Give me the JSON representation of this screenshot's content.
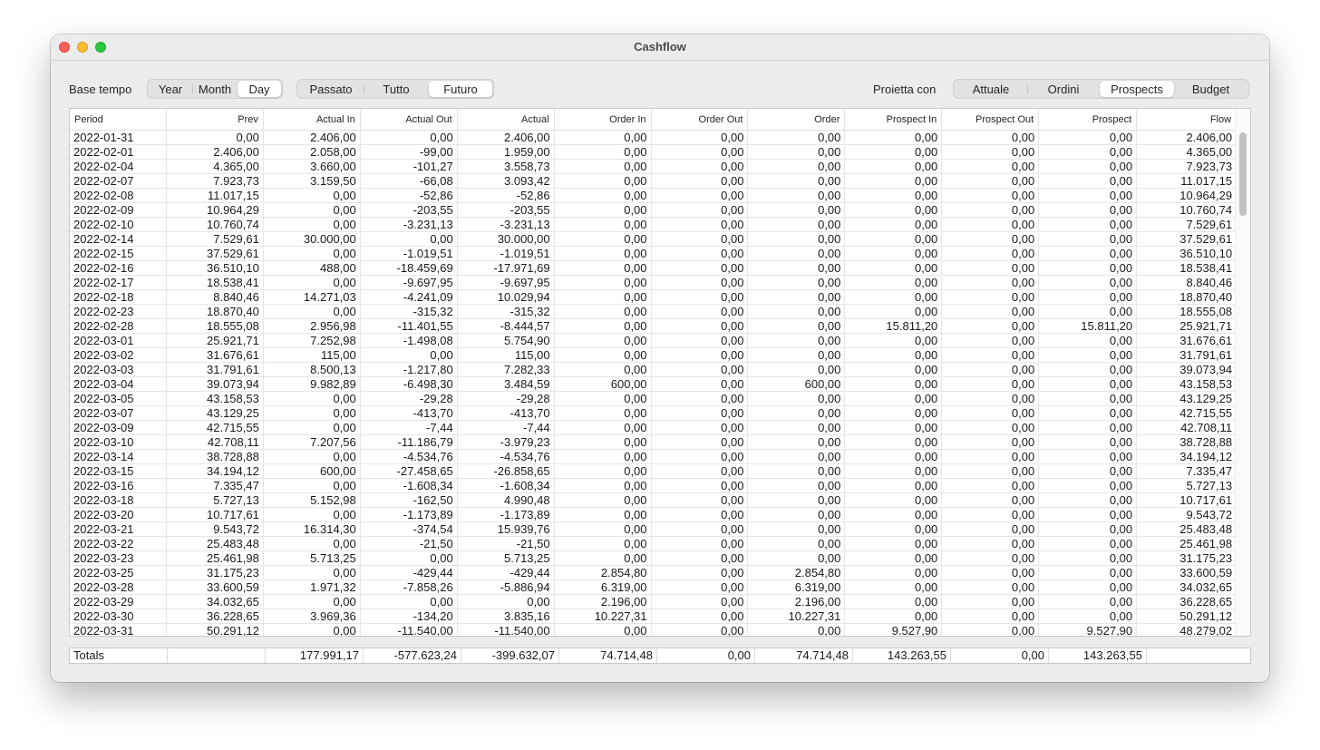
{
  "window": {
    "title": "Cashflow"
  },
  "toolbar": {
    "base_label": "Base tempo",
    "base_options": [
      "Year",
      "Month",
      "Day"
    ],
    "base_selected": 2,
    "period_options": [
      "Passato",
      "Tutto",
      "Futuro"
    ],
    "period_selected": 2,
    "project_label": "Proietta con",
    "project_options": [
      "Attuale",
      "Ordini",
      "Prospects",
      "Budget"
    ],
    "project_selected": 2
  },
  "table": {
    "columns": [
      "Period",
      "Prev",
      "Actual In",
      "Actual Out",
      "Actual",
      "Order In",
      "Order Out",
      "Order",
      "Prospect In",
      "Prospect Out",
      "Prospect",
      "Flow"
    ],
    "rows": [
      [
        "2022-01-31",
        "0,00",
        "2.406,00",
        "0,00",
        "2.406,00",
        "0,00",
        "0,00",
        "0,00",
        "0,00",
        "0,00",
        "0,00",
        "2.406,00"
      ],
      [
        "2022-02-01",
        "2.406,00",
        "2.058,00",
        "-99,00",
        "1.959,00",
        "0,00",
        "0,00",
        "0,00",
        "0,00",
        "0,00",
        "0,00",
        "4.365,00"
      ],
      [
        "2022-02-04",
        "4.365,00",
        "3.660,00",
        "-101,27",
        "3.558,73",
        "0,00",
        "0,00",
        "0,00",
        "0,00",
        "0,00",
        "0,00",
        "7.923,73"
      ],
      [
        "2022-02-07",
        "7.923,73",
        "3.159,50",
        "-66,08",
        "3.093,42",
        "0,00",
        "0,00",
        "0,00",
        "0,00",
        "0,00",
        "0,00",
        "11.017,15"
      ],
      [
        "2022-02-08",
        "11.017,15",
        "0,00",
        "-52,86",
        "-52,86",
        "0,00",
        "0,00",
        "0,00",
        "0,00",
        "0,00",
        "0,00",
        "10.964,29"
      ],
      [
        "2022-02-09",
        "10.964,29",
        "0,00",
        "-203,55",
        "-203,55",
        "0,00",
        "0,00",
        "0,00",
        "0,00",
        "0,00",
        "0,00",
        "10.760,74"
      ],
      [
        "2022-02-10",
        "10.760,74",
        "0,00",
        "-3.231,13",
        "-3.231,13",
        "0,00",
        "0,00",
        "0,00",
        "0,00",
        "0,00",
        "0,00",
        "7.529,61"
      ],
      [
        "2022-02-14",
        "7.529,61",
        "30.000,00",
        "0,00",
        "30.000,00",
        "0,00",
        "0,00",
        "0,00",
        "0,00",
        "0,00",
        "0,00",
        "37.529,61"
      ],
      [
        "2022-02-15",
        "37.529,61",
        "0,00",
        "-1.019,51",
        "-1.019,51",
        "0,00",
        "0,00",
        "0,00",
        "0,00",
        "0,00",
        "0,00",
        "36.510,10"
      ],
      [
        "2022-02-16",
        "36.510,10",
        "488,00",
        "-18.459,69",
        "-17.971,69",
        "0,00",
        "0,00",
        "0,00",
        "0,00",
        "0,00",
        "0,00",
        "18.538,41"
      ],
      [
        "2022-02-17",
        "18.538,41",
        "0,00",
        "-9.697,95",
        "-9.697,95",
        "0,00",
        "0,00",
        "0,00",
        "0,00",
        "0,00",
        "0,00",
        "8.840,46"
      ],
      [
        "2022-02-18",
        "8.840,46",
        "14.271,03",
        "-4.241,09",
        "10.029,94",
        "0,00",
        "0,00",
        "0,00",
        "0,00",
        "0,00",
        "0,00",
        "18.870,40"
      ],
      [
        "2022-02-23",
        "18.870,40",
        "0,00",
        "-315,32",
        "-315,32",
        "0,00",
        "0,00",
        "0,00",
        "0,00",
        "0,00",
        "0,00",
        "18.555,08"
      ],
      [
        "2022-02-28",
        "18.555,08",
        "2.956,98",
        "-11.401,55",
        "-8.444,57",
        "0,00",
        "0,00",
        "0,00",
        "15.811,20",
        "0,00",
        "15.811,20",
        "25.921,71"
      ],
      [
        "2022-03-01",
        "25.921,71",
        "7.252,98",
        "-1.498,08",
        "5.754,90",
        "0,00",
        "0,00",
        "0,00",
        "0,00",
        "0,00",
        "0,00",
        "31.676,61"
      ],
      [
        "2022-03-02",
        "31.676,61",
        "115,00",
        "0,00",
        "115,00",
        "0,00",
        "0,00",
        "0,00",
        "0,00",
        "0,00",
        "0,00",
        "31.791,61"
      ],
      [
        "2022-03-03",
        "31.791,61",
        "8.500,13",
        "-1.217,80",
        "7.282,33",
        "0,00",
        "0,00",
        "0,00",
        "0,00",
        "0,00",
        "0,00",
        "39.073,94"
      ],
      [
        "2022-03-04",
        "39.073,94",
        "9.982,89",
        "-6.498,30",
        "3.484,59",
        "600,00",
        "0,00",
        "600,00",
        "0,00",
        "0,00",
        "0,00",
        "43.158,53"
      ],
      [
        "2022-03-05",
        "43.158,53",
        "0,00",
        "-29,28",
        "-29,28",
        "0,00",
        "0,00",
        "0,00",
        "0,00",
        "0,00",
        "0,00",
        "43.129,25"
      ],
      [
        "2022-03-07",
        "43.129,25",
        "0,00",
        "-413,70",
        "-413,70",
        "0,00",
        "0,00",
        "0,00",
        "0,00",
        "0,00",
        "0,00",
        "42.715,55"
      ],
      [
        "2022-03-09",
        "42.715,55",
        "0,00",
        "-7,44",
        "-7,44",
        "0,00",
        "0,00",
        "0,00",
        "0,00",
        "0,00",
        "0,00",
        "42.708,11"
      ],
      [
        "2022-03-10",
        "42.708,11",
        "7.207,56",
        "-11.186,79",
        "-3.979,23",
        "0,00",
        "0,00",
        "0,00",
        "0,00",
        "0,00",
        "0,00",
        "38.728,88"
      ],
      [
        "2022-03-14",
        "38.728,88",
        "0,00",
        "-4.534,76",
        "-4.534,76",
        "0,00",
        "0,00",
        "0,00",
        "0,00",
        "0,00",
        "0,00",
        "34.194,12"
      ],
      [
        "2022-03-15",
        "34.194,12",
        "600,00",
        "-27.458,65",
        "-26.858,65",
        "0,00",
        "0,00",
        "0,00",
        "0,00",
        "0,00",
        "0,00",
        "7.335,47"
      ],
      [
        "2022-03-16",
        "7.335,47",
        "0,00",
        "-1.608,34",
        "-1.608,34",
        "0,00",
        "0,00",
        "0,00",
        "0,00",
        "0,00",
        "0,00",
        "5.727,13"
      ],
      [
        "2022-03-18",
        "5.727,13",
        "5.152,98",
        "-162,50",
        "4.990,48",
        "0,00",
        "0,00",
        "0,00",
        "0,00",
        "0,00",
        "0,00",
        "10.717,61"
      ],
      [
        "2022-03-20",
        "10.717,61",
        "0,00",
        "-1.173,89",
        "-1.173,89",
        "0,00",
        "0,00",
        "0,00",
        "0,00",
        "0,00",
        "0,00",
        "9.543,72"
      ],
      [
        "2022-03-21",
        "9.543,72",
        "16.314,30",
        "-374,54",
        "15.939,76",
        "0,00",
        "0,00",
        "0,00",
        "0,00",
        "0,00",
        "0,00",
        "25.483,48"
      ],
      [
        "2022-03-22",
        "25.483,48",
        "0,00",
        "-21,50",
        "-21,50",
        "0,00",
        "0,00",
        "0,00",
        "0,00",
        "0,00",
        "0,00",
        "25.461,98"
      ],
      [
        "2022-03-23",
        "25.461,98",
        "5.713,25",
        "0,00",
        "5.713,25",
        "0,00",
        "0,00",
        "0,00",
        "0,00",
        "0,00",
        "0,00",
        "31.175,23"
      ],
      [
        "2022-03-25",
        "31.175,23",
        "0,00",
        "-429,44",
        "-429,44",
        "2.854,80",
        "0,00",
        "2.854,80",
        "0,00",
        "0,00",
        "0,00",
        "33.600,59"
      ],
      [
        "2022-03-28",
        "33.600,59",
        "1.971,32",
        "-7.858,26",
        "-5.886,94",
        "6.319,00",
        "0,00",
        "6.319,00",
        "0,00",
        "0,00",
        "0,00",
        "34.032,65"
      ],
      [
        "2022-03-29",
        "34.032,65",
        "0,00",
        "0,00",
        "0,00",
        "2.196,00",
        "0,00",
        "2.196,00",
        "0,00",
        "0,00",
        "0,00",
        "36.228,65"
      ],
      [
        "2022-03-30",
        "36.228,65",
        "3.969,36",
        "-134,20",
        "3.835,16",
        "10.227,31",
        "0,00",
        "10.227,31",
        "0,00",
        "0,00",
        "0,00",
        "50.291,12"
      ],
      [
        "2022-03-31",
        "50.291,12",
        "0,00",
        "-11.540,00",
        "-11.540,00",
        "0,00",
        "0,00",
        "0,00",
        "9.527,90",
        "0,00",
        "9.527,90",
        "48.279,02"
      ]
    ]
  },
  "totals": [
    "Totals",
    "",
    "177.991,17",
    "-577.623,24",
    "-399.632,07",
    "74.714,48",
    "0,00",
    "74.714,48",
    "143.263,55",
    "0,00",
    "143.263,55",
    ""
  ]
}
